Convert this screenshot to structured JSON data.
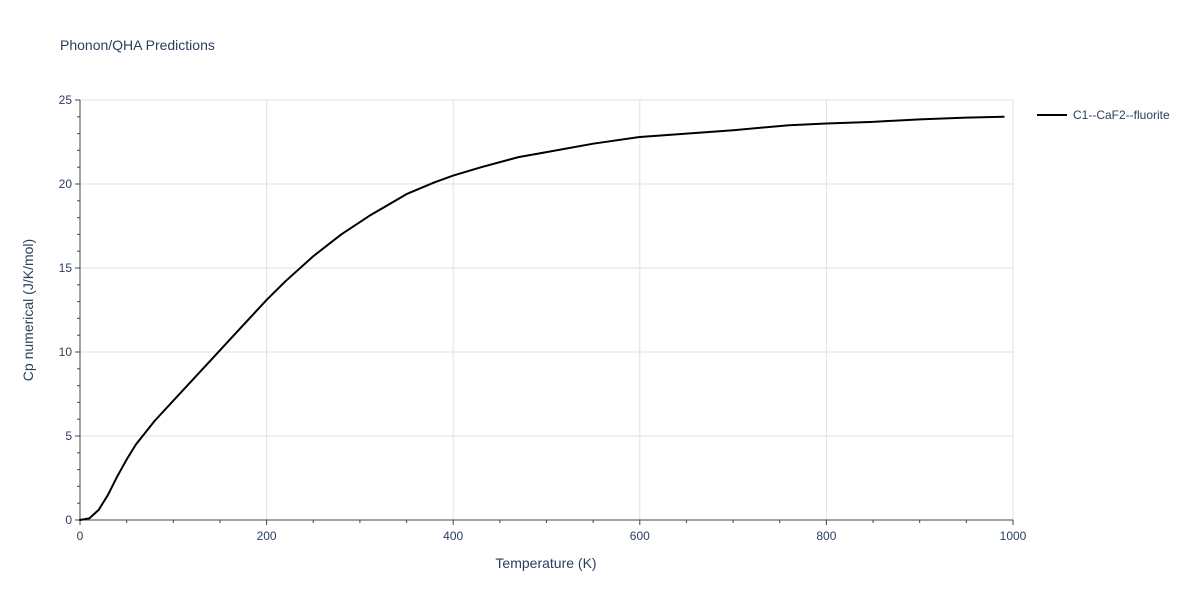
{
  "chart_data": {
    "type": "line",
    "title": "Phonon/QHA Predictions",
    "xlabel": "Temperature (K)",
    "ylabel": "Cp numerical (J/K/mol)",
    "xlim": [
      0,
      1000
    ],
    "ylim": [
      0,
      25
    ],
    "x_ticks": [
      0,
      200,
      400,
      600,
      800,
      1000
    ],
    "y_ticks": [
      0,
      5,
      10,
      15,
      20,
      25
    ],
    "grid": true,
    "legend_position": "top-right",
    "series": [
      {
        "name": "C1--CaF2--fluorite",
        "color": "#000000",
        "x": [
          0,
          10,
          20,
          30,
          40,
          50,
          60,
          70,
          80,
          100,
          120,
          140,
          160,
          180,
          200,
          220,
          250,
          280,
          310,
          350,
          380,
          400,
          430,
          470,
          500,
          550,
          600,
          650,
          700,
          760,
          800,
          850,
          900,
          950,
          990
        ],
        "y": [
          0,
          0.1,
          0.6,
          1.5,
          2.6,
          3.6,
          4.5,
          5.2,
          5.9,
          7.1,
          8.3,
          9.5,
          10.7,
          11.9,
          13.1,
          14.2,
          15.7,
          17.0,
          18.1,
          19.4,
          20.1,
          20.5,
          21.0,
          21.6,
          21.9,
          22.4,
          22.8,
          23.0,
          23.2,
          23.5,
          23.6,
          23.7,
          23.85,
          23.95,
          24.0
        ]
      }
    ]
  }
}
